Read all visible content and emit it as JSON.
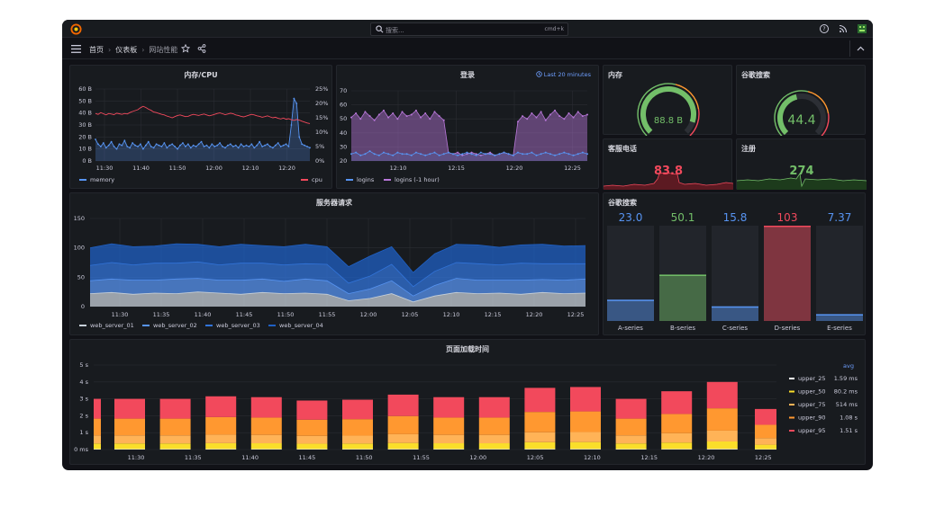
{
  "header": {
    "search_placeholder": "搜索...",
    "search_shortcut": "cmd+k"
  },
  "breadcrumb": {
    "home": "首页",
    "dashboards": "仪表板",
    "current": "网站性能"
  },
  "icons": {
    "logo": "grafana-logo-icon",
    "search": "search-icon",
    "help": "help-icon",
    "news": "rss-icon",
    "avatar": "avatar-icon",
    "menu": "hamburger-menu-icon",
    "star": "star-icon",
    "share": "share-icon",
    "collapse": "chevron-up-icon",
    "clock": "clock-icon"
  },
  "colors": {
    "blue": "#5794f2",
    "red": "#f2495c",
    "green": "#73bf69",
    "purple": "#b877d9",
    "orange": "#ff9830",
    "yellow": "#fade2a"
  },
  "panels": {
    "memory_cpu": {
      "title": "内存/CPU"
    },
    "logins": {
      "title": "登录",
      "time_info": "Last 20 minutes"
    },
    "memory_gauge": {
      "title": "内存",
      "value": "88.8 B",
      "gauge_fraction": 0.9
    },
    "google_gauge": {
      "title": "谷歌搜索",
      "value": "44.4",
      "gauge_fraction": 0.45
    },
    "support_calls": {
      "title": "客服电话",
      "value": "83.8"
    },
    "signups": {
      "title": "注册",
      "value": "274"
    },
    "server_requests": {
      "title": "服务器请求"
    },
    "google_bars": {
      "title": "谷歌搜索"
    },
    "page_load": {
      "title": "页面加载时间"
    }
  },
  "chart_data": [
    {
      "id": "memory_cpu",
      "type": "line",
      "title": "内存/CPU",
      "x_ticks": [
        "11:30",
        "11:40",
        "11:50",
        "12:00",
        "12:10",
        "12:20"
      ],
      "y_left_ticks": [
        "0 B",
        "10 B",
        "20 B",
        "30 B",
        "40 B",
        "50 B",
        "60 B"
      ],
      "y_right_ticks": [
        "0%",
        "5%",
        "10%",
        "15%",
        "20%",
        "25%"
      ],
      "ylim_left": [
        0,
        60
      ],
      "ylim_right": [
        0,
        25
      ],
      "series": [
        {
          "name": "memory",
          "color": "#5794f2",
          "axis": "left",
          "values": [
            18,
            14,
            12,
            15,
            11,
            13,
            16,
            12,
            10,
            14,
            13,
            17,
            12,
            11,
            15,
            13,
            12,
            14,
            10,
            13,
            16,
            12,
            11,
            14,
            13,
            12,
            15,
            11,
            13,
            14,
            12,
            10,
            13,
            15,
            12,
            14,
            11,
            13,
            12,
            14,
            16,
            12,
            13,
            11,
            14,
            12,
            13,
            15,
            12,
            11,
            13,
            14,
            12,
            13,
            11,
            14,
            12,
            13,
            12,
            14,
            11,
            13,
            16,
            12,
            13,
            14,
            12,
            11,
            13,
            15,
            12,
            13,
            14,
            12,
            30,
            52,
            48,
            20,
            14,
            13,
            12,
            11
          ]
        },
        {
          "name": "cpu",
          "color": "#f2495c",
          "axis": "right",
          "values": [
            16.5,
            16.2,
            16.8,
            16.4,
            16,
            16.5,
            16.3,
            16.1,
            16.6,
            16.4,
            16.2,
            16.5,
            16.3,
            16.8,
            17.2,
            17.5,
            17.8,
            18.5,
            19,
            18.6,
            18,
            17.6,
            17,
            16.8,
            16.5,
            16.2,
            16,
            15.6,
            15.3,
            15,
            15.4,
            15.8,
            16,
            15.7,
            15.4,
            15.5,
            15.9,
            16.2,
            16,
            15.8,
            16.1,
            16.3,
            16,
            15.7,
            15.9,
            16.2,
            16.5,
            16.7,
            16.4,
            16.1,
            16.3,
            16.6,
            16.4,
            16,
            15.8,
            15.5,
            15.3,
            15.6,
            15.9,
            16.2,
            16,
            15.7,
            15.5,
            15.2,
            15.4,
            15.7,
            15.3,
            15,
            15.2,
            14.8,
            14.6,
            14.9,
            14.5,
            14.7,
            14.3,
            14.1,
            14.4,
            14.2,
            13.8,
            13.5,
            13.2,
            13
          ]
        }
      ],
      "legend": [
        "memory",
        "cpu"
      ]
    },
    {
      "id": "logins",
      "type": "line",
      "title": "登录",
      "x_ticks": [
        "12:10",
        "12:15",
        "12:20",
        "12:25"
      ],
      "y_ticks": [
        "20",
        "30",
        "40",
        "50",
        "60",
        "70"
      ],
      "ylim": [
        20,
        70
      ],
      "series": [
        {
          "name": "logins",
          "color": "#5794f2",
          "values": [
            25,
            26,
            24,
            25,
            27,
            25,
            24,
            26,
            25,
            24,
            26,
            25,
            25,
            24,
            26,
            25,
            24,
            25,
            26,
            24,
            25,
            26,
            25,
            24,
            25,
            26,
            25,
            24,
            26,
            25,
            25,
            24,
            25,
            26,
            25,
            24,
            26,
            25,
            25,
            26,
            24,
            25,
            26,
            25,
            24,
            25,
            26,
            25,
            24,
            25,
            26,
            25
          ]
        },
        {
          "name": "logins (-1 hour)",
          "color": "#b877d9",
          "values": [
            51,
            54,
            50,
            55,
            52,
            49,
            53,
            56,
            51,
            54,
            50,
            55,
            52,
            53,
            56,
            51,
            54,
            50,
            55,
            52,
            49,
            26,
            25,
            26,
            24,
            25,
            26,
            25,
            24,
            25,
            26,
            24,
            25,
            26,
            25,
            24,
            48,
            52,
            50,
            54,
            51,
            55,
            49,
            53,
            56,
            52,
            50,
            54,
            51,
            55,
            52,
            53
          ]
        }
      ],
      "legend": [
        "logins",
        "logins (-1 hour)"
      ]
    },
    {
      "id": "server_requests",
      "type": "area",
      "title": "服务器请求",
      "x_ticks": [
        "11:30",
        "11:35",
        "11:40",
        "11:45",
        "11:50",
        "11:55",
        "12:00",
        "12:05",
        "12:10",
        "12:15",
        "12:20",
        "12:25"
      ],
      "y_ticks": [
        "0",
        "50",
        "100",
        "150"
      ],
      "ylim": [
        0,
        150
      ],
      "stacked": true,
      "series": [
        {
          "name": "web_server_01",
          "color": "#c7d0d9",
          "values": [
            22,
            24,
            21,
            23,
            22,
            25,
            23,
            21,
            24,
            22,
            23,
            21,
            10,
            14,
            22,
            8,
            18,
            24,
            22,
            23,
            21,
            24,
            22,
            23
          ]
        },
        {
          "name": "web_server_02",
          "color": "#5794f2",
          "values": [
            22,
            23,
            24,
            22,
            25,
            23,
            22,
            24,
            23,
            21,
            24,
            23,
            12,
            16,
            22,
            10,
            18,
            24,
            23,
            22,
            24,
            22,
            23,
            24
          ]
        },
        {
          "name": "web_server_03",
          "color": "#3274d9",
          "values": [
            26,
            28,
            26,
            29,
            27,
            28,
            26,
            29,
            27,
            28,
            26,
            28,
            18,
            22,
            28,
            16,
            24,
            27,
            28,
            26,
            29,
            27,
            28,
            26
          ]
        },
        {
          "name": "web_server_04",
          "color": "#1f60c4",
          "values": [
            30,
            32,
            31,
            29,
            33,
            30,
            31,
            32,
            30,
            31,
            33,
            30,
            28,
            34,
            30,
            24,
            30,
            31,
            32,
            30,
            31,
            33,
            30,
            31
          ]
        }
      ],
      "legend": [
        "web_server_01",
        "web_server_02",
        "web_server_03",
        "web_server_04"
      ]
    },
    {
      "id": "google_bars",
      "type": "bar",
      "title": "谷歌搜索",
      "categories": [
        "A-series",
        "B-series",
        "C-series",
        "D-series",
        "E-series"
      ],
      "values": [
        23.0,
        50.1,
        15.8,
        103,
        7.37
      ],
      "value_labels": [
        "23.0",
        "50.1",
        "15.8",
        "103",
        "7.37"
      ],
      "colors": [
        "#5794f2",
        "#73bf69",
        "#5794f2",
        "#f2495c",
        "#5794f2"
      ],
      "ylim": [
        0,
        103
      ]
    },
    {
      "id": "page_load",
      "type": "bar",
      "title": "页面加载时间",
      "stacked": true,
      "x_ticks": [
        "11:30",
        "11:35",
        "11:40",
        "11:45",
        "11:50",
        "11:55",
        "12:00",
        "12:05",
        "12:10",
        "12:15",
        "12:20",
        "12:25"
      ],
      "y_ticks": [
        "0 ms",
        "1 s",
        "2 s",
        "3 s",
        "4 s",
        "5 s"
      ],
      "ylim": [
        0,
        5
      ],
      "bar_totals": [
        3.0,
        3.0,
        3.0,
        3.15,
        3.1,
        2.9,
        2.95,
        3.25,
        3.1,
        3.1,
        3.65,
        3.7,
        3.0,
        3.45,
        4.0,
        2.4
      ],
      "series": [
        {
          "name": "upper_25",
          "color": "#ffffff"
        },
        {
          "name": "upper_50",
          "color": "#fade2a"
        },
        {
          "name": "upper_75",
          "color": "#ffb357"
        },
        {
          "name": "upper_90",
          "color": "#ff9830"
        },
        {
          "name": "upper_95",
          "color": "#f2495c"
        }
      ],
      "legend_header": "avg",
      "legend": [
        {
          "name": "upper_25",
          "avg": "1.59 ms",
          "color": "#ffffff"
        },
        {
          "name": "upper_50",
          "avg": "80.2 ms",
          "color": "#fade2a"
        },
        {
          "name": "upper_75",
          "avg": "514 ms",
          "color": "#ffb357"
        },
        {
          "name": "upper_90",
          "avg": "1.08 s",
          "color": "#ff9830"
        },
        {
          "name": "upper_95",
          "avg": "1.51 s",
          "color": "#f2495c"
        }
      ]
    }
  ]
}
